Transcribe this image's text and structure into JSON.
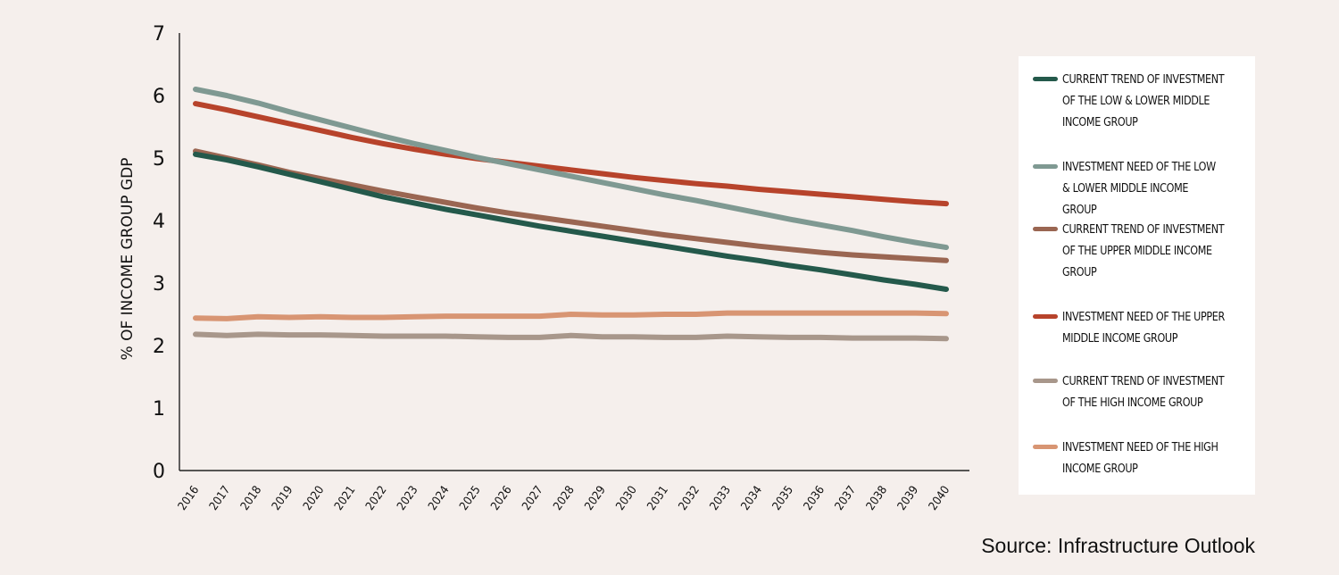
{
  "chart_data": {
    "type": "line",
    "ylabel": "% OF INCOME GROUP GDP",
    "xlabel": "",
    "ylim": [
      0,
      7
    ],
    "yticks": [
      "0",
      "1",
      "2",
      "3",
      "4",
      "5",
      "6",
      "7"
    ],
    "x": [
      "2016",
      "2017",
      "2018",
      "2019",
      "2020",
      "2021",
      "2022",
      "2023",
      "2024",
      "2025",
      "2026",
      "2027",
      "2028",
      "2029",
      "2030",
      "2031",
      "2032",
      "2033",
      "2034",
      "2035",
      "2036",
      "2037",
      "2038",
      "2039",
      "2040"
    ],
    "grid": false,
    "legend_position": "right",
    "series": [
      {
        "name": "CURRENT TREND OF INVESTMENT OF THE LOW & LOWER MIDDLE INCOME GROUP",
        "color": "#24594b",
        "values": [
          5.06,
          4.97,
          4.86,
          4.74,
          4.62,
          4.5,
          4.38,
          4.28,
          4.18,
          4.09,
          4.0,
          3.91,
          3.83,
          3.75,
          3.67,
          3.59,
          3.51,
          3.43,
          3.36,
          3.28,
          3.21,
          3.13,
          3.05,
          2.98,
          2.9
        ]
      },
      {
        "name": "INVESTMENT NEED OF THE LOW & LOWER MIDDLE INCOME GROUP",
        "color": "#7f9992",
        "values": [
          6.1,
          6.0,
          5.88,
          5.74,
          5.61,
          5.48,
          5.35,
          5.23,
          5.12,
          5.01,
          4.91,
          4.81,
          4.71,
          4.61,
          4.51,
          4.41,
          4.32,
          4.22,
          4.12,
          4.02,
          3.93,
          3.84,
          3.74,
          3.65,
          3.57
        ]
      },
      {
        "name": "CURRENT TREND OF INVESTMENT OF THE UPPER MIDDLE INCOME GROUP",
        "color": "#9a6652",
        "values": [
          5.11,
          5.0,
          4.89,
          4.77,
          4.67,
          4.57,
          4.47,
          4.38,
          4.29,
          4.2,
          4.12,
          4.05,
          3.98,
          3.91,
          3.84,
          3.77,
          3.71,
          3.65,
          3.59,
          3.54,
          3.49,
          3.45,
          3.42,
          3.39,
          3.36
        ]
      },
      {
        "name": "INVESTMENT NEED OF THE UPPER MIDDLE INCOME GROUP",
        "color": "#b7432b",
        "values": [
          5.87,
          5.77,
          5.66,
          5.55,
          5.44,
          5.33,
          5.23,
          5.14,
          5.06,
          4.99,
          4.93,
          4.87,
          4.81,
          4.75,
          4.69,
          4.64,
          4.59,
          4.55,
          4.5,
          4.46,
          4.42,
          4.38,
          4.34,
          4.3,
          4.27
        ]
      },
      {
        "name": "CURRENT TREND OF INVESTMENT OF THE HIGH INCOME GROUP",
        "color": "#a8978b",
        "values": [
          2.18,
          2.16,
          2.18,
          2.17,
          2.17,
          2.16,
          2.15,
          2.15,
          2.15,
          2.14,
          2.13,
          2.13,
          2.16,
          2.14,
          2.14,
          2.13,
          2.13,
          2.15,
          2.14,
          2.13,
          2.13,
          2.12,
          2.12,
          2.12,
          2.11
        ]
      },
      {
        "name": "INVESTMENT NEED OF THE HIGH INCOME GROUP",
        "color": "#d89573",
        "values": [
          2.44,
          2.43,
          2.46,
          2.45,
          2.46,
          2.45,
          2.45,
          2.46,
          2.47,
          2.47,
          2.47,
          2.47,
          2.5,
          2.49,
          2.49,
          2.5,
          2.5,
          2.52,
          2.52,
          2.52,
          2.52,
          2.52,
          2.52,
          2.52,
          2.51
        ]
      }
    ]
  },
  "legend": {
    "items": [
      "CURRENT TREND OF INVESTMENT OF THE LOW & LOWER MIDDLE INCOME GROUP",
      "INVESTMENT NEED OF THE LOW & LOWER MIDDLE INCOME GROUP",
      "CURRENT TREND OF INVESTMENT OF THE UPPER MIDDLE INCOME GROUP",
      "INVESTMENT NEED OF THE UPPER MIDDLE INCOME GROUP",
      "CURRENT TREND OF INVESTMENT OF THE HIGH INCOME GROUP",
      "INVESTMENT NEED OF THE HIGH INCOME GROUP"
    ]
  },
  "source": "Source: Infrastructure Outlook"
}
